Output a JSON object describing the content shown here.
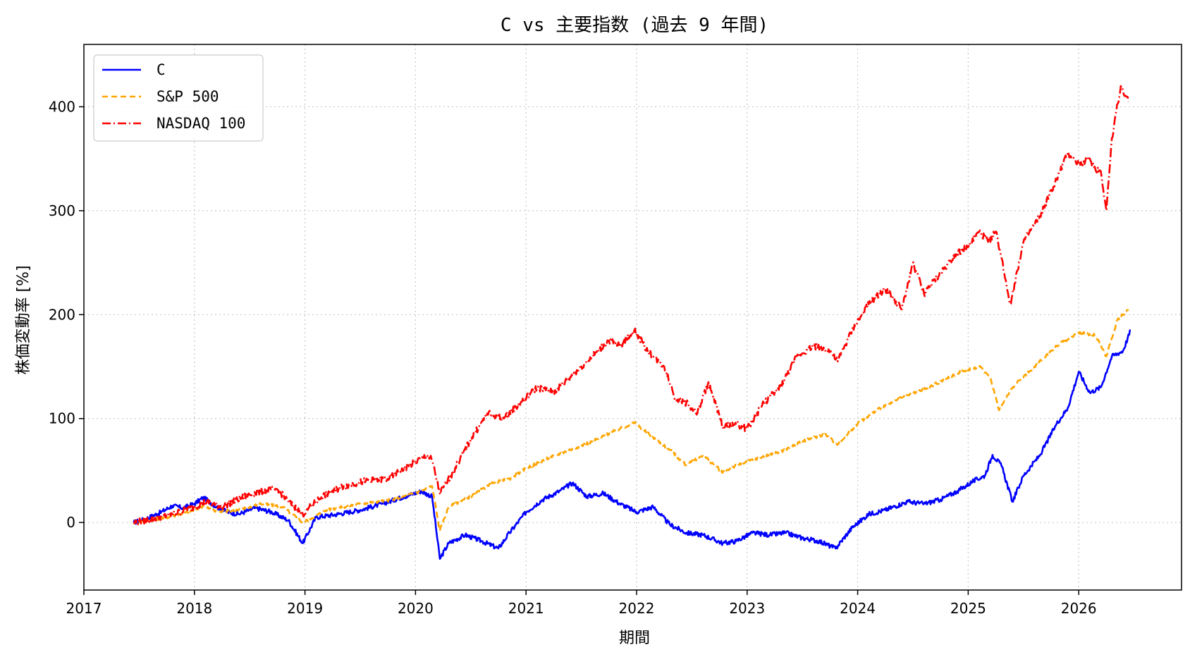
{
  "chart_data": {
    "type": "line",
    "title": "C vs 主要指数 (過去 9 年間)",
    "xlabel": "期間",
    "ylabel": "株価変動率 [%]",
    "x_ticks": [
      "2017",
      "2018",
      "2019",
      "2020",
      "2021",
      "2022",
      "2023",
      "2024",
      "2025",
      "2026"
    ],
    "y_ticks": [
      0,
      100,
      200,
      300,
      400
    ],
    "xlim": [
      2017.0,
      2026.93
    ],
    "ylim": [
      -65,
      460
    ],
    "grid": true,
    "legend_position": "upper-left",
    "series": [
      {
        "name": "C",
        "color": "#0000ff",
        "style": "solid",
        "x": [
          2017.45,
          2017.55,
          2017.7,
          2017.8,
          2017.9,
          2018.0,
          2018.08,
          2018.2,
          2018.3,
          2018.4,
          2018.55,
          2018.7,
          2018.85,
          2018.98,
          2019.1,
          2019.3,
          2019.5,
          2019.7,
          2019.9,
          2020.05,
          2020.15,
          2020.22,
          2020.3,
          2020.45,
          2020.6,
          2020.75,
          2020.85,
          2021.0,
          2021.15,
          2021.3,
          2021.42,
          2021.55,
          2021.7,
          2021.85,
          2022.0,
          2022.15,
          2022.3,
          2022.45,
          2022.6,
          2022.78,
          2022.9,
          2023.05,
          2023.2,
          2023.35,
          2023.5,
          2023.65,
          2023.8,
          2023.95,
          2024.1,
          2024.25,
          2024.45,
          2024.6,
          2024.75,
          2024.9,
          2025.05,
          2025.15,
          2025.22,
          2025.3,
          2025.4,
          2025.5,
          2025.65,
          2025.8,
          2025.9,
          2026.0,
          2026.1,
          2026.2,
          2026.3,
          2026.4,
          2026.47
        ],
        "values": [
          0,
          3,
          10,
          16,
          14,
          18,
          24,
          15,
          10,
          8,
          14,
          10,
          2,
          -20,
          5,
          8,
          12,
          18,
          25,
          30,
          25,
          -35,
          -20,
          -12,
          -18,
          -25,
          -10,
          10,
          22,
          30,
          38,
          25,
          28,
          18,
          10,
          15,
          -2,
          -10,
          -12,
          -20,
          -18,
          -10,
          -12,
          -10,
          -15,
          -18,
          -25,
          -5,
          8,
          12,
          20,
          18,
          22,
          30,
          40,
          45,
          65,
          55,
          20,
          45,
          65,
          95,
          110,
          145,
          125,
          130,
          160,
          165,
          185
        ]
      },
      {
        "name": "S&P 500",
        "color": "#ffa500",
        "style": "dashed",
        "x": [
          2017.45,
          2017.6,
          2017.8,
          2018.0,
          2018.08,
          2018.2,
          2018.4,
          2018.6,
          2018.8,
          2018.98,
          2019.2,
          2019.5,
          2019.8,
          2020.05,
          2020.15,
          2020.22,
          2020.3,
          2020.5,
          2020.7,
          2020.85,
          2021.0,
          2021.2,
          2021.4,
          2021.6,
          2021.8,
          2021.98,
          2022.15,
          2022.3,
          2022.45,
          2022.6,
          2022.78,
          2022.9,
          2023.1,
          2023.3,
          2023.5,
          2023.7,
          2023.82,
          2024.0,
          2024.2,
          2024.4,
          2024.6,
          2024.8,
          2024.95,
          2025.1,
          2025.2,
          2025.28,
          2025.4,
          2025.6,
          2025.8,
          2026.0,
          2026.15,
          2026.25,
          2026.35,
          2026.45
        ],
        "values": [
          0,
          2,
          6,
          12,
          16,
          10,
          12,
          18,
          15,
          0,
          12,
          18,
          22,
          30,
          35,
          -8,
          15,
          25,
          38,
          42,
          52,
          62,
          70,
          78,
          88,
          96,
          82,
          70,
          55,
          65,
          48,
          55,
          62,
          68,
          78,
          85,
          75,
          95,
          110,
          120,
          128,
          138,
          146,
          150,
          140,
          108,
          130,
          150,
          170,
          183,
          180,
          160,
          195,
          205
        ]
      },
      {
        "name": "NASDAQ 100",
        "color": "#ff0000",
        "style": "dashdot",
        "x": [
          2017.45,
          2017.6,
          2017.8,
          2018.0,
          2018.1,
          2018.25,
          2018.45,
          2018.6,
          2018.75,
          2018.85,
          2018.98,
          2019.15,
          2019.35,
          2019.55,
          2019.75,
          2019.95,
          2020.1,
          2020.15,
          2020.22,
          2020.32,
          2020.5,
          2020.65,
          2020.8,
          2020.95,
          2021.1,
          2021.25,
          2021.4,
          2021.6,
          2021.75,
          2021.85,
          2021.98,
          2022.1,
          2022.25,
          2022.35,
          2022.45,
          2022.55,
          2022.65,
          2022.78,
          2022.9,
          2023.0,
          2023.15,
          2023.3,
          2023.45,
          2023.6,
          2023.75,
          2023.82,
          2023.95,
          2024.1,
          2024.25,
          2024.4,
          2024.5,
          2024.6,
          2024.75,
          2024.9,
          2025.0,
          2025.1,
          2025.18,
          2025.25,
          2025.3,
          2025.38,
          2025.5,
          2025.65,
          2025.8,
          2025.9,
          2026.0,
          2026.1,
          2026.15,
          2026.2,
          2026.25,
          2026.3,
          2026.38,
          2026.45
        ],
        "values": [
          0,
          3,
          8,
          15,
          20,
          15,
          25,
          30,
          32,
          20,
          8,
          25,
          35,
          40,
          42,
          55,
          65,
          60,
          28,
          45,
          80,
          105,
          100,
          115,
          130,
          125,
          140,
          160,
          175,
          170,
          185,
          165,
          150,
          120,
          115,
          105,
          135,
          92,
          95,
          90,
          115,
          130,
          160,
          170,
          165,
          155,
          185,
          210,
          225,
          205,
          250,
          220,
          240,
          260,
          265,
          280,
          270,
          280,
          255,
          210,
          270,
          295,
          330,
          355,
          345,
          350,
          340,
          338,
          300,
          370,
          420,
          405
        ]
      }
    ]
  }
}
